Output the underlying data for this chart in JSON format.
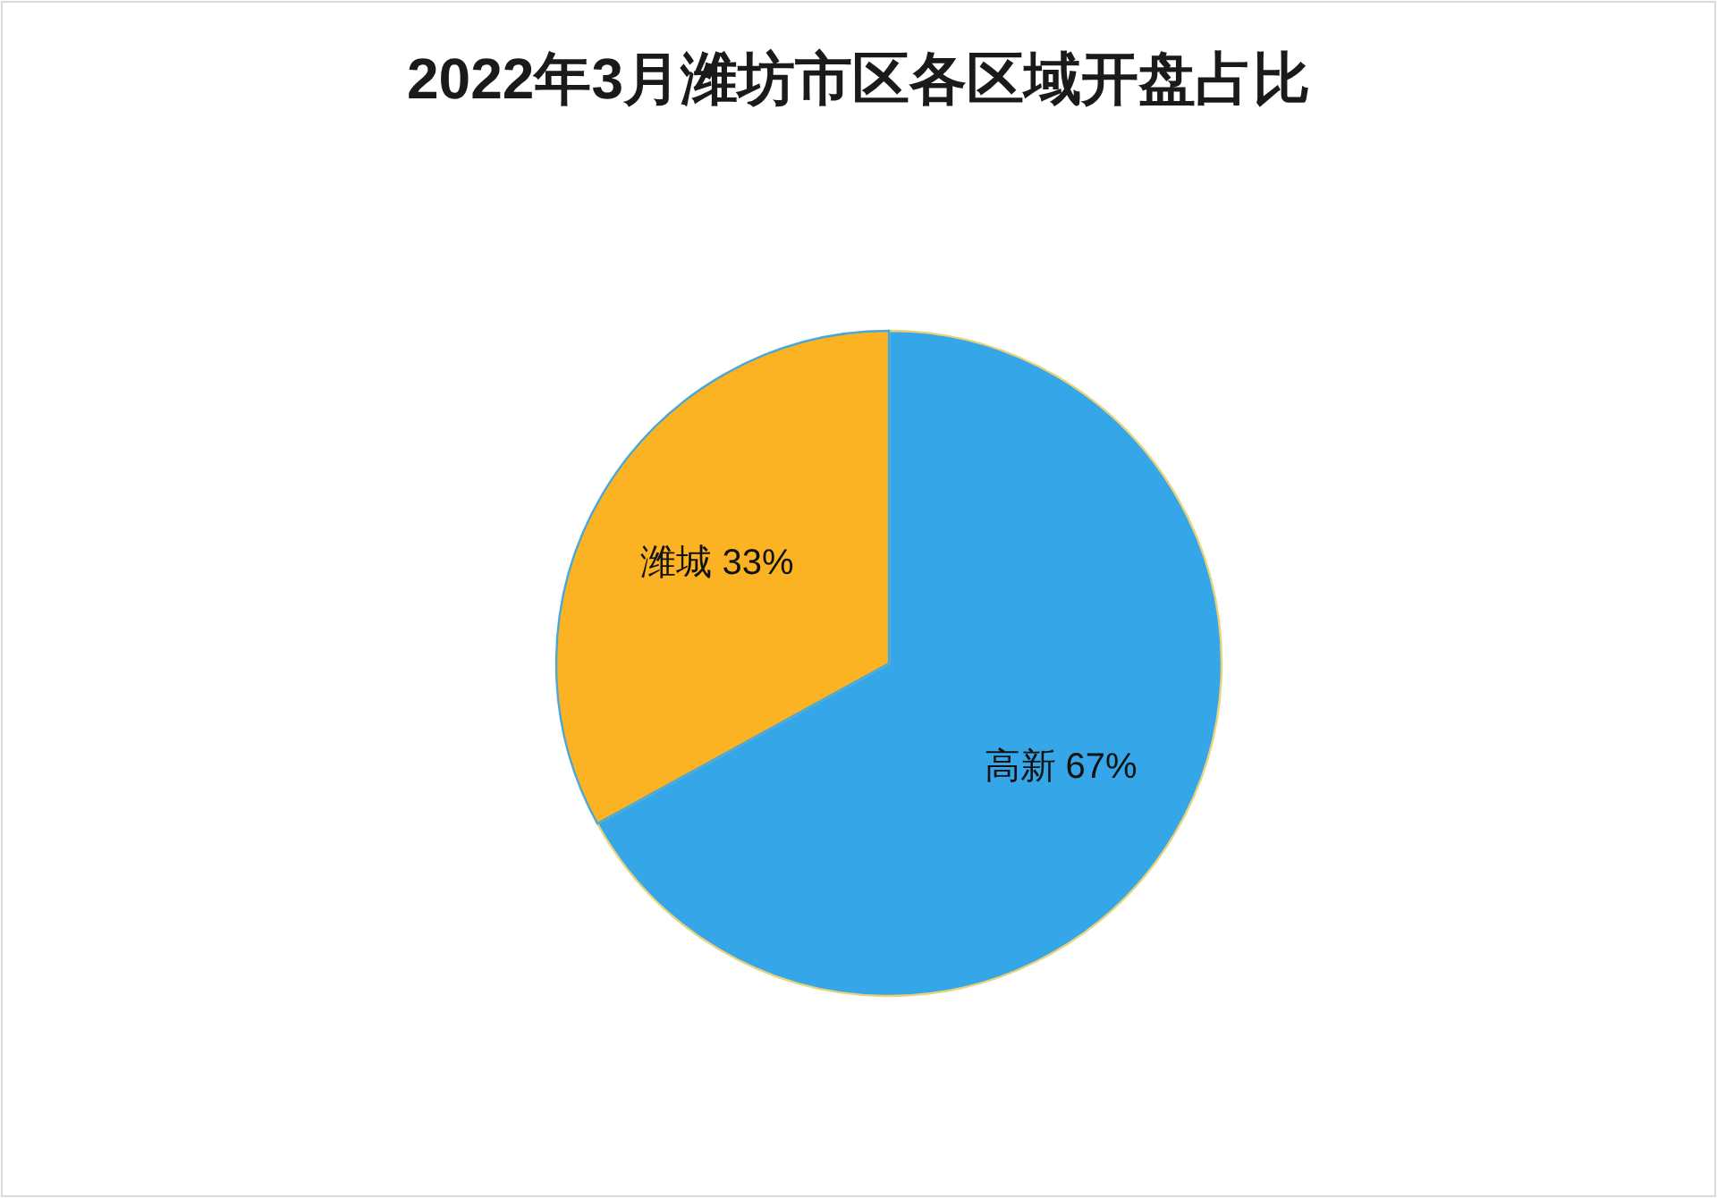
{
  "chart_data": {
    "type": "pie",
    "title": "2022年3月潍坊市区各区域开盘占比",
    "categories": [
      "高新",
      "潍城"
    ],
    "values": [
      67,
      33
    ],
    "colors": [
      "#35a6e8",
      "#fbb324"
    ],
    "value_labels": [
      "67%",
      "33%"
    ],
    "legend": false
  }
}
